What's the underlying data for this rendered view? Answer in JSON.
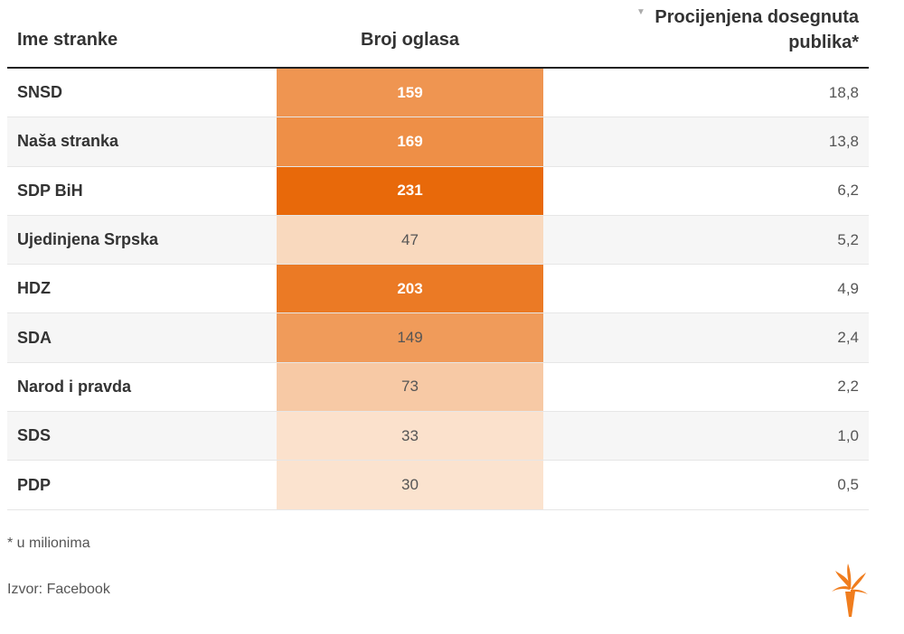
{
  "header": {
    "name_label": "Ime stranke",
    "count_label": "Broj oglasa",
    "reach_label_line1": "Procijenjena dosegnuta",
    "reach_label_line2": "publika*",
    "sort_icon": "▼"
  },
  "chart_data": {
    "type": "table",
    "columns": [
      "Ime stranke",
      "Broj oglasa",
      "Procijenjena dosegnuta publika*"
    ],
    "rows": [
      {
        "name": "SNSD",
        "count": 159,
        "reach": "18,8"
      },
      {
        "name": "Naša stranka",
        "count": 169,
        "reach": "13,8"
      },
      {
        "name": "SDP BiH",
        "count": 231,
        "reach": "6,2"
      },
      {
        "name": "Ujedinjena Srpska",
        "count": 47,
        "reach": "5,2"
      },
      {
        "name": "HDZ",
        "count": 203,
        "reach": "4,9"
      },
      {
        "name": "SDA",
        "count": 149,
        "reach": "2,4"
      },
      {
        "name": "Narod i pravda",
        "count": 73,
        "reach": "2,2"
      },
      {
        "name": "SDS",
        "count": 33,
        "reach": "1,0"
      },
      {
        "name": "PDP",
        "count": 30,
        "reach": "0,5"
      }
    ],
    "heat_scale": {
      "min": 30,
      "max": 231,
      "light_color": "#fbe3cf",
      "dark_color": "#e8690a"
    },
    "sort": {
      "column": "Procijenjena dosegnuta publika*",
      "direction": "descending"
    }
  },
  "footer": {
    "footnote": "* u milionima",
    "source": "Izvor: Facebook"
  },
  "colors": {
    "logo": "#f07d1e",
    "text": "#333333",
    "header_rule": "#222222"
  },
  "icons": {
    "logo": "torch-logo-icon"
  }
}
